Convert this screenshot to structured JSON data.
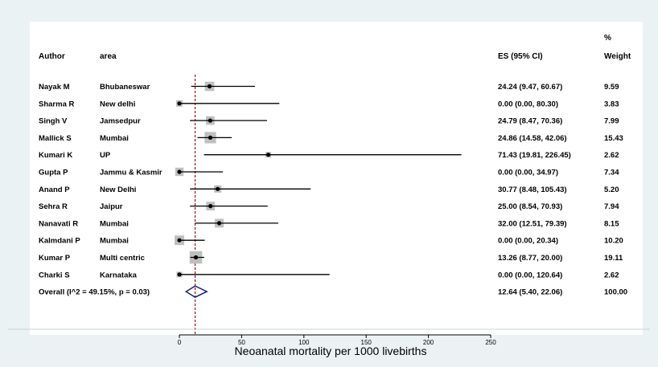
{
  "chart_data": {
    "type": "forest",
    "headers": {
      "author": "Author",
      "area": "area",
      "es": "ES (95% CI)",
      "weight_top": "%",
      "weight": "Weight"
    },
    "rows": [
      {
        "author": "Nayak M",
        "area": "Bhubaneswar",
        "es": 24.24,
        "lo": 9.47,
        "hi": 60.67,
        "ci_text": "24.24 (9.47, 60.67)",
        "weight": "9.59",
        "w": 9.59
      },
      {
        "author": "Sharma R",
        "area": "New delhi",
        "es": 0.0,
        "lo": 0.0,
        "hi": 80.3,
        "ci_text": "0.00 (0.00, 80.30)",
        "weight": "3.83",
        "w": 3.83
      },
      {
        "author": "Singh V",
        "area": "Jamsedpur",
        "es": 24.79,
        "lo": 8.47,
        "hi": 70.36,
        "ci_text": "24.79 (8.47, 70.36)",
        "weight": "7.99",
        "w": 7.99
      },
      {
        "author": "Mallick S",
        "area": "Mumbai",
        "es": 24.86,
        "lo": 14.58,
        "hi": 42.06,
        "ci_text": "24.86 (14.58, 42.06)",
        "weight": "15.43",
        "w": 15.43
      },
      {
        "author": "Kumari K",
        "area": "UP",
        "es": 71.43,
        "lo": 19.81,
        "hi": 226.45,
        "ci_text": "71.43 (19.81, 226.45)",
        "weight": "2.62",
        "w": 2.62
      },
      {
        "author": "Gupta P",
        "area": "Jammu & Kasmir",
        "es": 0.0,
        "lo": 0.0,
        "hi": 34.97,
        "ci_text": "0.00 (0.00, 34.97)",
        "weight": "7.34",
        "w": 7.34
      },
      {
        "author": "Anand P",
        "area": "New Delhi",
        "es": 30.77,
        "lo": 8.48,
        "hi": 105.43,
        "ci_text": "30.77 (8.48, 105.43)",
        "weight": "5.20",
        "w": 5.2
      },
      {
        "author": "Sehra R",
        "area": "Jaipur",
        "es": 25.0,
        "lo": 8.54,
        "hi": 70.93,
        "ci_text": "25.00 (8.54, 70.93)",
        "weight": "7.94",
        "w": 7.94
      },
      {
        "author": "Nanavati R",
        "area": "Mumbai",
        "es": 32.0,
        "lo": 12.51,
        "hi": 79.39,
        "ci_text": "32.00 (12.51, 79.39)",
        "weight": "8.15",
        "w": 8.15
      },
      {
        "author": "Kalmdani P",
        "area": "Mumbai",
        "es": 0.0,
        "lo": 0.0,
        "hi": 20.34,
        "ci_text": "0.00 (0.00, 20.34)",
        "weight": "10.20",
        "w": 10.2
      },
      {
        "author": "Kumar P",
        "area": "Multi centric",
        "es": 13.26,
        "lo": 8.77,
        "hi": 20.0,
        "ci_text": "13.26 (8.77, 20.00)",
        "weight": "19.11",
        "w": 19.11
      },
      {
        "author": "Charki S",
        "area": "Karnataka",
        "es": 0.0,
        "lo": 0.0,
        "hi": 120.64,
        "ci_text": "0.00 (0.00, 120.64)",
        "weight": "2.62",
        "w": 2.62
      }
    ],
    "overall": {
      "label": "Overall  (I^2 = 49.15%, p = 0.03)",
      "es": 12.64,
      "lo": 5.4,
      "hi": 22.06,
      "ci_text": "12.64 (5.40, 22.06)",
      "weight": "100.00"
    },
    "x_ticks": [
      0,
      50,
      100,
      150,
      200,
      250
    ],
    "xlabel": "Neoanatal mortality per 1000 livebirths",
    "reference_line": 12.64,
    "colors": {
      "background": "#eaf2f3",
      "panel": "#ffffff",
      "box": "#bfbfbf",
      "line": "#000000",
      "reference": "#8b1a1a",
      "overall": "#1f1f7a"
    }
  }
}
